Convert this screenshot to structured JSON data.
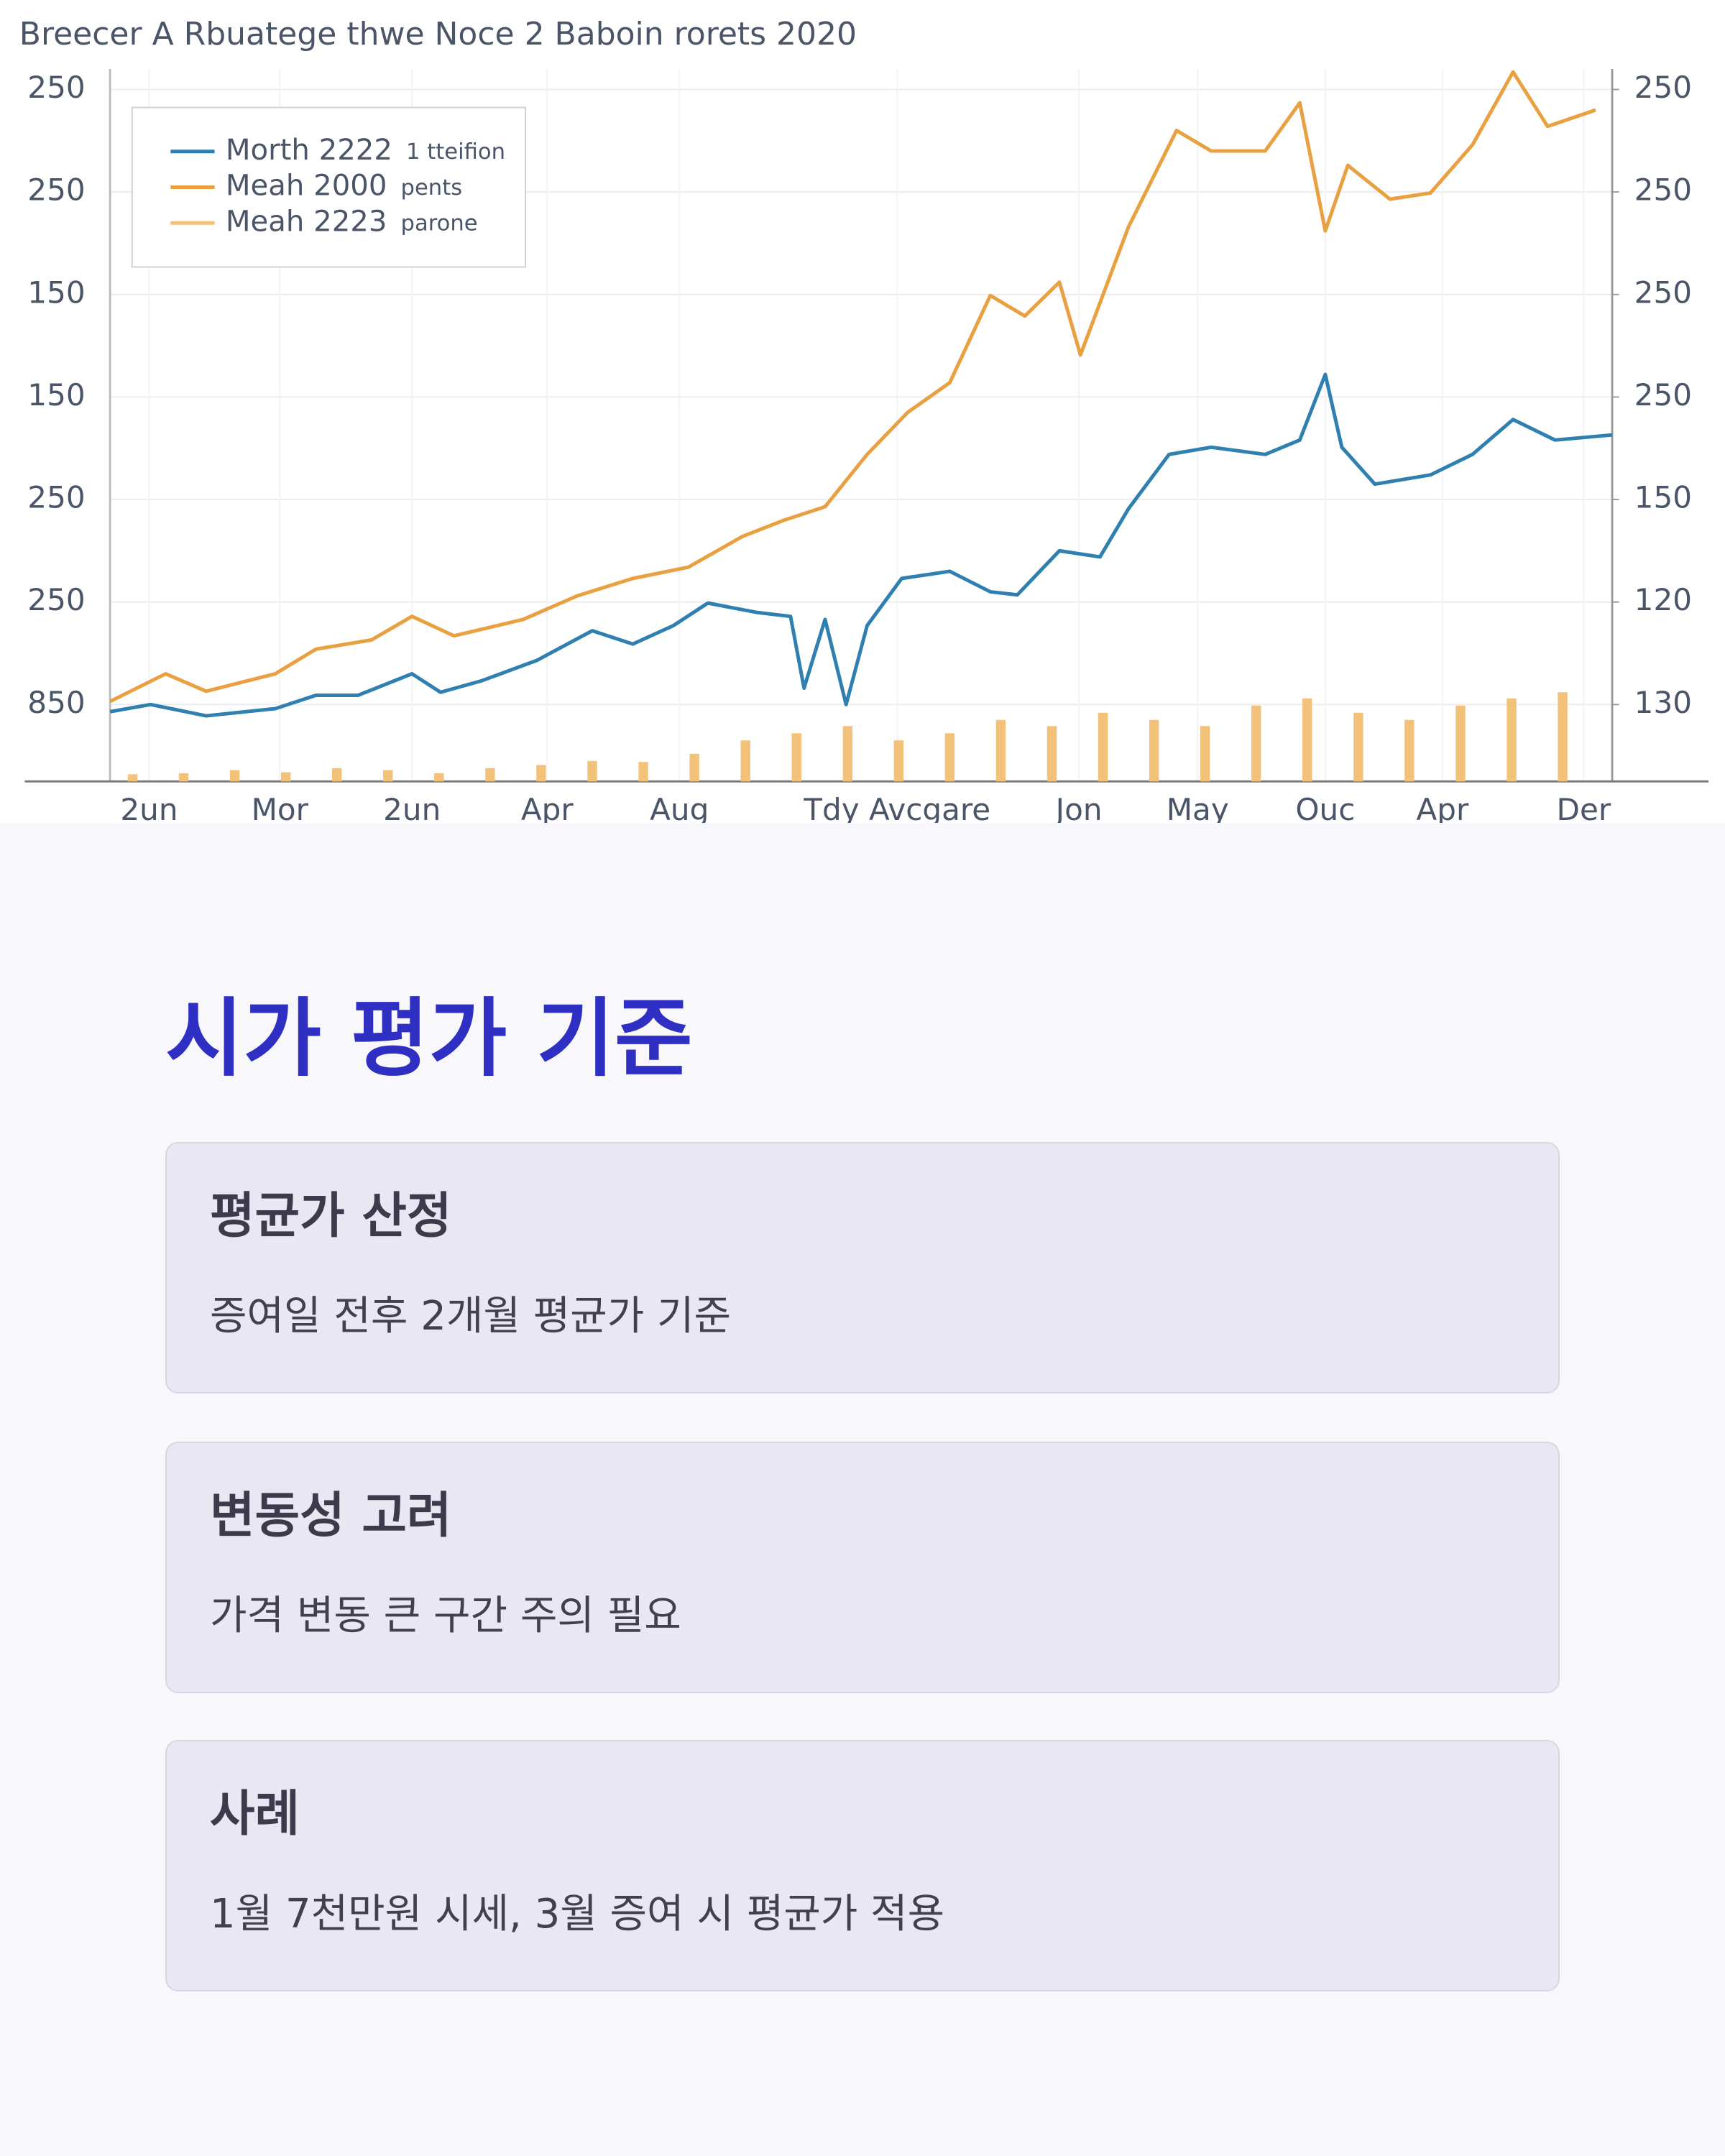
{
  "chart_data": {
    "type": "line",
    "title": "Breecer A Rbuatege thwe Noce 2 Baboin rorets 2020",
    "xlim": [
      0,
      100
    ],
    "xticks": [
      {
        "value": 2.6,
        "label": "2un"
      },
      {
        "value": 11.3,
        "label": "Mor"
      },
      {
        "value": 20.1,
        "label": "2un"
      },
      {
        "value": 29.1,
        "label": "Apr"
      },
      {
        "value": 37.9,
        "label": "Aug"
      },
      {
        "value": 52.4,
        "label": "Tdy Avcgare"
      },
      {
        "value": 64.5,
        "label": "Jon"
      },
      {
        "value": 72.4,
        "label": "May"
      },
      {
        "value": 80.9,
        "label": "Ouc"
      },
      {
        "value": 88.7,
        "label": "Apr"
      },
      {
        "value": 98.1,
        "label": "Der"
      }
    ],
    "ylim": [
      -0.75,
      6.2
    ],
    "yticks": [
      {
        "value": 6,
        "label": "250"
      },
      {
        "value": 5,
        "label": "250"
      },
      {
        "value": 4,
        "label": "150"
      },
      {
        "value": 3,
        "label": "150"
      },
      {
        "value": 2,
        "label": "250"
      },
      {
        "value": 1,
        "label": "250"
      },
      {
        "value": 0,
        "label": "850"
      }
    ],
    "y2lim": [
      -0.75,
      6.2
    ],
    "y2ticks": [
      {
        "value": 6,
        "label": "250"
      },
      {
        "value": 5,
        "label": "250"
      },
      {
        "value": 4,
        "label": "250"
      },
      {
        "value": 3,
        "label": "250"
      },
      {
        "value": 2,
        "label": "150"
      },
      {
        "value": 1,
        "label": "120"
      },
      {
        "value": 0,
        "label": "130"
      }
    ],
    "grid": true,
    "legend": "upper left",
    "series": [
      {
        "name": "Morth 2222",
        "legend_note": "1 tteifion",
        "type": "line",
        "color": "#2f80b0",
        "x": [
          0,
          2.7,
          6.4,
          11.0,
          13.7,
          16.5,
          20.1,
          22.0,
          24.7,
          28.4,
          32.1,
          34.8,
          37.5,
          39.8,
          43.0,
          45.3,
          46.2,
          47.6,
          49.0,
          50.4,
          52.7,
          55.9,
          58.6,
          60.4,
          63.2,
          65.9,
          67.8,
          70.5,
          73.3,
          76.9,
          79.2,
          80.9,
          82.0,
          84.2,
          87.9,
          90.7,
          93.4,
          96.2,
          100
        ],
        "values": [
          -0.07,
          0,
          -0.11,
          -0.04,
          0.09,
          0.09,
          0.3,
          0.12,
          0.23,
          0.43,
          0.72,
          0.59,
          0.77,
          0.99,
          0.9,
          0.86,
          0.16,
          0.83,
          0,
          0.77,
          1.23,
          1.3,
          1.1,
          1.07,
          1.5,
          1.44,
          1.91,
          2.44,
          2.51,
          2.44,
          2.58,
          3.22,
          2.51,
          2.15,
          2.24,
          2.44,
          2.78,
          2.58,
          2.63
        ]
      },
      {
        "name": "Meah 2000",
        "legend_note": "pents",
        "type": "line",
        "color": "#e9a040",
        "x": [
          0,
          3.7,
          6.4,
          11.0,
          13.7,
          17.4,
          20.1,
          22.9,
          27.5,
          31.1,
          34.8,
          38.5,
          42.1,
          44.9,
          47.6,
          50.4,
          53.1,
          55.9,
          58.6,
          60.9,
          63.2,
          64.6,
          67.8,
          71.0,
          73.3,
          76.9,
          79.2,
          80.9,
          82.4,
          85.2,
          87.9,
          90.7,
          93.4,
          95.7,
          98.9
        ],
        "values": [
          0.03,
          0.3,
          0.13,
          0.3,
          0.54,
          0.63,
          0.86,
          0.67,
          0.83,
          1.06,
          1.23,
          1.34,
          1.64,
          1.8,
          1.93,
          2.44,
          2.85,
          3.14,
          3.99,
          3.79,
          4.12,
          3.41,
          4.66,
          5.6,
          5.4,
          5.4,
          5.87,
          4.62,
          5.26,
          4.93,
          4.99,
          5.46,
          6.17,
          5.64,
          5.8
        ]
      },
      {
        "name": "Meah 2223",
        "legend_note": "parone",
        "type": "bar",
        "color": "#f3c27a",
        "x": [
          1.5,
          4.9,
          8.3,
          11.7,
          15.1,
          18.5,
          21.9,
          25.3,
          28.7,
          32.1,
          35.5,
          38.9,
          42.3,
          45.7,
          49.1,
          52.5,
          55.9,
          59.3,
          62.7,
          66.1,
          69.5,
          72.9,
          76.3,
          79.7,
          83.1,
          86.5,
          89.9,
          93.3,
          96.7
        ],
        "values": [
          -0.68,
          -0.67,
          -0.64,
          -0.66,
          -0.62,
          -0.64,
          -0.67,
          -0.62,
          -0.59,
          -0.55,
          -0.56,
          -0.48,
          -0.35,
          -0.28,
          -0.21,
          -0.35,
          -0.28,
          -0.15,
          -0.21,
          -0.08,
          -0.15,
          -0.21,
          -0.01,
          0.06,
          -0.08,
          -0.15,
          -0.01,
          0.06,
          0.12
        ]
      }
    ]
  },
  "heading": "시가 평가 기준",
  "cards": [
    {
      "title": "평균가 산정",
      "text": "증여일 전후 2개월 평균가 기준"
    },
    {
      "title": "변동성 고려",
      "text": "가격 변동 큰 구간 주의 필요"
    },
    {
      "title": "사례",
      "text": "1월 7천만원 시세, 3월 증여 시 평균가 적용"
    }
  ]
}
